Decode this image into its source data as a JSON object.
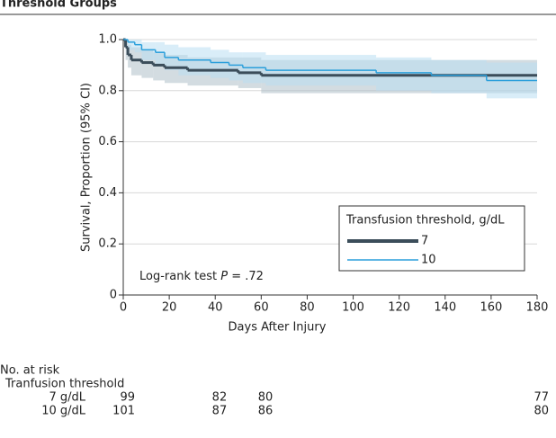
{
  "chart_data": {
    "type": "step",
    "title": "Threshold Groups",
    "x_label": "Days After Injury",
    "y_label": "Survival, Proportion (95% CI)",
    "annotation": {
      "prefix": "Log-rank test ",
      "italic": "P",
      "suffix": " = .72"
    },
    "legend_title": "Transfusion threshold, g/dL",
    "xlim": [
      0,
      180
    ],
    "xticks": [
      0,
      20,
      40,
      60,
      80,
      100,
      120,
      140,
      160,
      180
    ],
    "ylim": [
      0,
      1
    ],
    "yticks": [
      0,
      0.2,
      0.4,
      0.6,
      {
        "value": 0.8,
        "label": "0.8"
      },
      {
        "value": 1,
        "label": "1.0"
      }
    ],
    "grid": true,
    "series": [
      {
        "name": "7",
        "color": "#3b4d5a",
        "band_color": "#aebfc9",
        "x": [
          0,
          1,
          2,
          3.5,
          8,
          13,
          18,
          28,
          50,
          60,
          180
        ],
        "values": [
          1,
          0.97,
          0.94,
          0.92,
          0.91,
          0.9,
          0.89,
          0.88,
          0.87,
          0.86,
          0.86
        ],
        "lower": [
          1,
          0.92,
          0.89,
          0.86,
          0.85,
          0.84,
          0.83,
          0.82,
          0.81,
          0.79,
          0.79
        ],
        "upper": [
          1,
          1,
          0.98,
          0.97,
          0.96,
          0.95,
          0.94,
          0.93,
          0.93,
          0.92,
          0.92
        ]
      },
      {
        "name": "10",
        "color": "#2b9fdb",
        "band_color": "#b9dff3",
        "x": [
          0,
          2,
          5,
          8,
          14,
          18,
          24,
          38,
          46,
          52,
          62,
          110,
          134,
          158,
          180
        ],
        "values": [
          1,
          0.99,
          0.98,
          0.96,
          0.95,
          0.93,
          0.92,
          0.91,
          0.9,
          0.89,
          0.88,
          0.87,
          0.86,
          0.84,
          0.84
        ],
        "lower": [
          1,
          0.96,
          0.95,
          0.92,
          0.9,
          0.88,
          0.86,
          0.85,
          0.84,
          0.83,
          0.82,
          0.8,
          0.79,
          0.77,
          0.77
        ],
        "upper": [
          1,
          1,
          1,
          0.99,
          0.99,
          0.98,
          0.97,
          0.96,
          0.95,
          0.95,
          0.94,
          0.93,
          0.92,
          0.91,
          0.91
        ]
      }
    ],
    "risk_table": {
      "title": "No. at risk",
      "subtitle": "Tranfusion threshold",
      "times": [
        0,
        40,
        60,
        180
      ],
      "rows": [
        {
          "label": "7 g/dL",
          "counts": [
            99,
            82,
            80,
            77
          ]
        },
        {
          "label": "10 g/dL",
          "counts": [
            101,
            87,
            86,
            80
          ]
        }
      ]
    }
  }
}
